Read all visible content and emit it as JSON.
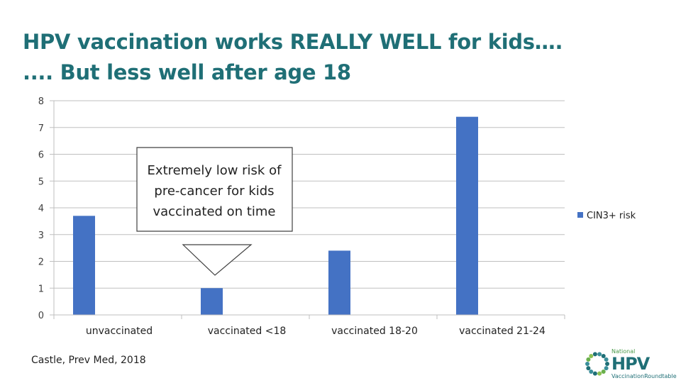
{
  "title": {
    "line1": "HPV vaccination works REALLY WELL for kids….",
    "line2": ".... But less well after age 18"
  },
  "chart_data": {
    "type": "bar",
    "categories": [
      "unvaccinated",
      "vaccinated <18",
      "vaccinated 18-20",
      "vaccinated 21-24"
    ],
    "series": [
      {
        "name": "CIN3+ risk",
        "values": [
          3.7,
          1.0,
          2.4,
          7.4
        ],
        "color": "#4472c4"
      }
    ],
    "ylim": [
      0,
      8
    ],
    "yticks": [
      "0",
      "1",
      "2",
      "3",
      "4",
      "5",
      "6",
      "7",
      "8"
    ],
    "grid": true,
    "legend_position": "right",
    "annotation": {
      "lines": [
        "Extremely low risk of",
        "pre-cancer for kids",
        "vaccinated on time"
      ],
      "points_to": "vaccinated <18"
    }
  },
  "source": "Castle, Prev Med, 2018",
  "logo": {
    "top_word": "National",
    "main_word": "HPV",
    "bottom_word": "VaccinationRoundtable"
  }
}
